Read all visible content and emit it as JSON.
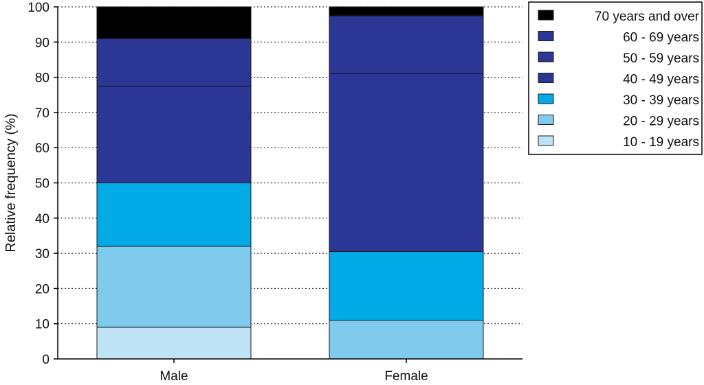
{
  "chart_data": {
    "type": "bar",
    "stacked": true,
    "ylabel": "Relative frequency (%)",
    "xlabel": "",
    "ylim": [
      0,
      100
    ],
    "yticks": [
      0,
      10,
      20,
      30,
      40,
      50,
      60,
      70,
      80,
      90,
      100
    ],
    "categories": [
      "Male",
      "Female"
    ],
    "grid": "horizontal dotted",
    "legend_position": "top-right",
    "series": [
      {
        "name": "10 - 19 years",
        "color": "#bfe3f5",
        "values": [
          9,
          0
        ]
      },
      {
        "name": "20 - 29 years",
        "color": "#7ecbee",
        "values": [
          23,
          11
        ]
      },
      {
        "name": "30 - 39 years",
        "color": "#03abe6",
        "values": [
          18,
          19.5
        ]
      },
      {
        "name": "40 - 49 years",
        "color": "#2b3695",
        "values": [
          27.5,
          50.5
        ]
      },
      {
        "name": "50 - 59 years",
        "color": "#2b3695",
        "values": [
          13.5,
          16.5
        ]
      },
      {
        "name": "60 - 69 years",
        "color": "#2b3695",
        "values": [
          0,
          0
        ]
      },
      {
        "name": "70 years and over",
        "color": "#000000",
        "values": [
          9,
          2.5
        ]
      }
    ]
  }
}
